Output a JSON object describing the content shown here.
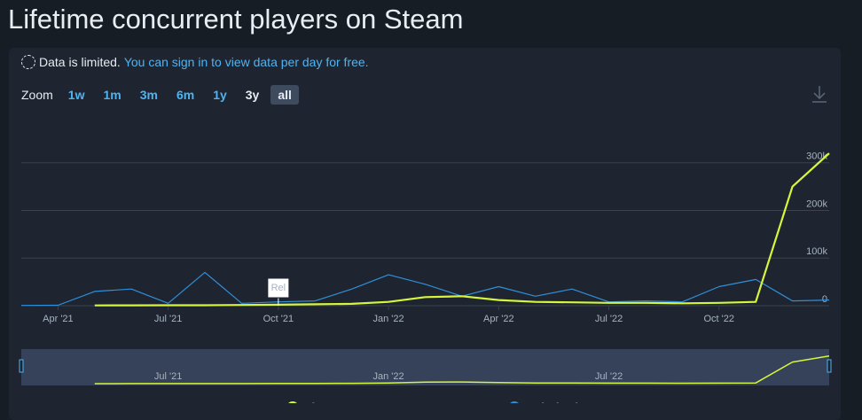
{
  "header": {
    "title": "Lifetime concurrent players on Steam"
  },
  "notice": {
    "text": "Data is limited.",
    "link": "You can sign in to view data per day for free."
  },
  "zoom": {
    "label": "Zoom",
    "options": [
      "1w",
      "1m",
      "3m",
      "6m",
      "1y",
      "3y",
      "all"
    ]
  },
  "chart_data": {
    "type": "line",
    "x": [
      "2021-03",
      "2021-04",
      "2021-05",
      "2021-06",
      "2021-07",
      "2021-08",
      "2021-09",
      "2021-10",
      "2021-11",
      "2021-12",
      "2022-01",
      "2022-02",
      "2022-03",
      "2022-04",
      "2022-05",
      "2022-06",
      "2022-07",
      "2022-08",
      "2022-09",
      "2022-10",
      "2022-11",
      "2022-12",
      "2023-01"
    ],
    "series": [
      {
        "name": "Players",
        "color": "#d6f53c",
        "values": [
          null,
          null,
          500,
          800,
          1000,
          1000,
          1500,
          2000,
          3000,
          4000,
          8000,
          18000,
          20000,
          12000,
          8000,
          7000,
          6000,
          6000,
          5000,
          6000,
          8000,
          250000,
          320000
        ]
      },
      {
        "name": "Twitch Viewers",
        "color": "#2f8fd8",
        "values": [
          500,
          1000,
          30000,
          35000,
          5000,
          70000,
          5000,
          8000,
          10000,
          35000,
          65000,
          45000,
          20000,
          40000,
          20000,
          35000,
          8000,
          10000,
          8000,
          40000,
          55000,
          10000,
          12000
        ]
      }
    ],
    "xlim": [
      "2021-03",
      "2023-01"
    ],
    "xticks": [
      {
        "value": "2021-04",
        "label": "Apr '21"
      },
      {
        "value": "2021-07",
        "label": "Jul '21"
      },
      {
        "value": "2021-10",
        "label": "Oct '21"
      },
      {
        "value": "2022-01",
        "label": "Jan '22"
      },
      {
        "value": "2022-04",
        "label": "Apr '22"
      },
      {
        "value": "2022-07",
        "label": "Jul '22"
      },
      {
        "value": "2022-10",
        "label": "Oct '22"
      }
    ],
    "ylim": [
      0,
      400000
    ],
    "yticks": [
      0,
      {
        "value": 100000,
        "label": "100k"
      },
      {
        "value": 200000,
        "label": "200k"
      },
      {
        "value": 300000,
        "label": "300k"
      }
    ],
    "grid": true,
    "annotations": [
      {
        "x": "2021-10",
        "text": "Rel"
      }
    ],
    "navigator_xticks": [
      {
        "value": "2021-07",
        "label": "Jul '21"
      },
      {
        "value": "2022-01",
        "label": "Jan '22"
      },
      {
        "value": "2022-07",
        "label": "Jul '22"
      }
    ]
  }
}
